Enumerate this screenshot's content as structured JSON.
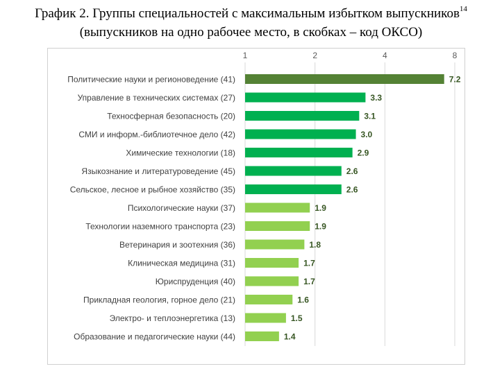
{
  "title": {
    "line1": "График 2. Группы специальностей с максимальным избытком выпускников",
    "footnote": "14",
    "line2": "(выпускников на одно рабочее место, в скобках – код ОКСО)"
  },
  "chart_data": {
    "type": "bar",
    "orientation": "horizontal",
    "x_scale": "log2",
    "xlim": [
      1,
      8
    ],
    "x_ticks": [
      "1",
      "2",
      "4",
      "8"
    ],
    "x_tick_values": [
      1,
      2,
      4,
      8
    ],
    "axis_position": "top",
    "grid": true,
    "categories": [
      "Политические науки и регионоведение (41)",
      "Управление в технических системах (27)",
      "Техносферная безопасность (20)",
      "СМИ и информ.-библиотечное дело (42)",
      "Химические технологии (18)",
      "Языкознание и литературоведение (45)",
      "Сельское, лесное и рыбное хозяйство (35)",
      "Психологические науки (37)",
      "Технологии наземного транспорта (23)",
      "Ветеринария и зоотехния (36)",
      "Клиническая медицина (31)",
      "Юриспруденция (40)",
      "Прикладная геология, горное дело (21)",
      "Электро- и теплоэнергетика (13)",
      "Образование и педагогические науки (44)"
    ],
    "values": [
      7.2,
      3.3,
      3.1,
      3.0,
      2.9,
      2.6,
      2.6,
      1.9,
      1.9,
      1.8,
      1.7,
      1.7,
      1.6,
      1.5,
      1.4
    ],
    "value_labels": [
      "7.2",
      "3.3",
      "3.1",
      "3.0",
      "2.9",
      "2.6",
      "2.6",
      "1.9",
      "1.9",
      "1.8",
      "1.7",
      "1.7",
      "1.6",
      "1.5",
      "1.4"
    ],
    "bar_colors": [
      "#548235",
      "#00b050",
      "#00b050",
      "#00b050",
      "#00b050",
      "#00b050",
      "#00b050",
      "#92d050",
      "#92d050",
      "#92d050",
      "#92d050",
      "#92d050",
      "#92d050",
      "#92d050",
      "#92d050"
    ],
    "label_color": "#375623",
    "category_color": "#404040",
    "tick_color": "#595959",
    "grid_color": "#d9d9d9"
  }
}
